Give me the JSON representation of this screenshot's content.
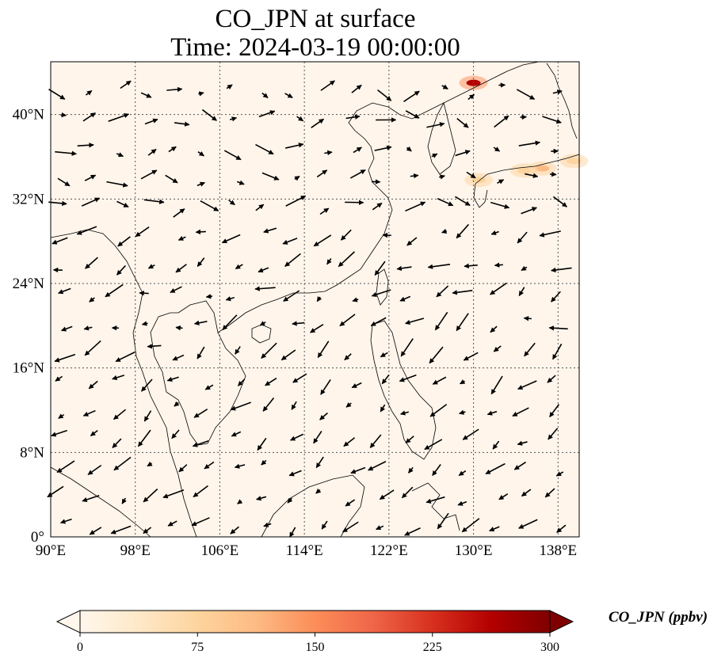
{
  "title": {
    "line1": "CO_JPN at surface",
    "line2": "Time: 2024-03-19 00:00:00"
  },
  "map": {
    "lon_range": [
      90,
      140
    ],
    "lat_range": [
      0,
      45
    ],
    "lon_ticks": [
      "90°E",
      "98°E",
      "106°E",
      "114°E",
      "122°E",
      "130°E",
      "138°E"
    ],
    "lon_values": [
      90,
      98,
      106,
      114,
      122,
      130,
      138
    ],
    "lat_ticks": [
      "0°",
      "8°N",
      "16°N",
      "24°N",
      "32°N",
      "40°N"
    ],
    "lat_values": [
      0,
      8,
      16,
      24,
      32,
      40
    ],
    "gridlines": true,
    "background_color": "#fff5eb",
    "coastline_color": "#000000",
    "wind_vectors": true
  },
  "colorbar": {
    "label": "CO_JPN (ppbv)",
    "colormap": "OrRd",
    "min": 0,
    "max": 300,
    "ticks": [
      "0",
      "75",
      "150",
      "225",
      "300"
    ],
    "extend": "both",
    "colors": [
      "#fff7ec",
      "#fee8c8",
      "#fdd49e",
      "#fdbb84",
      "#fc8d59",
      "#ef6548",
      "#d7301f",
      "#b30000",
      "#7f0000"
    ]
  },
  "hotspots": [
    {
      "lon": 130.0,
      "lat": 43.0,
      "level": 0.9
    },
    {
      "lon": 136.5,
      "lat": 34.9,
      "level": 0.35
    },
    {
      "lon": 134.8,
      "lat": 34.7,
      "level": 0.3
    },
    {
      "lon": 139.5,
      "lat": 35.6,
      "level": 0.25
    },
    {
      "lon": 130.5,
      "lat": 33.8,
      "level": 0.2
    }
  ]
}
